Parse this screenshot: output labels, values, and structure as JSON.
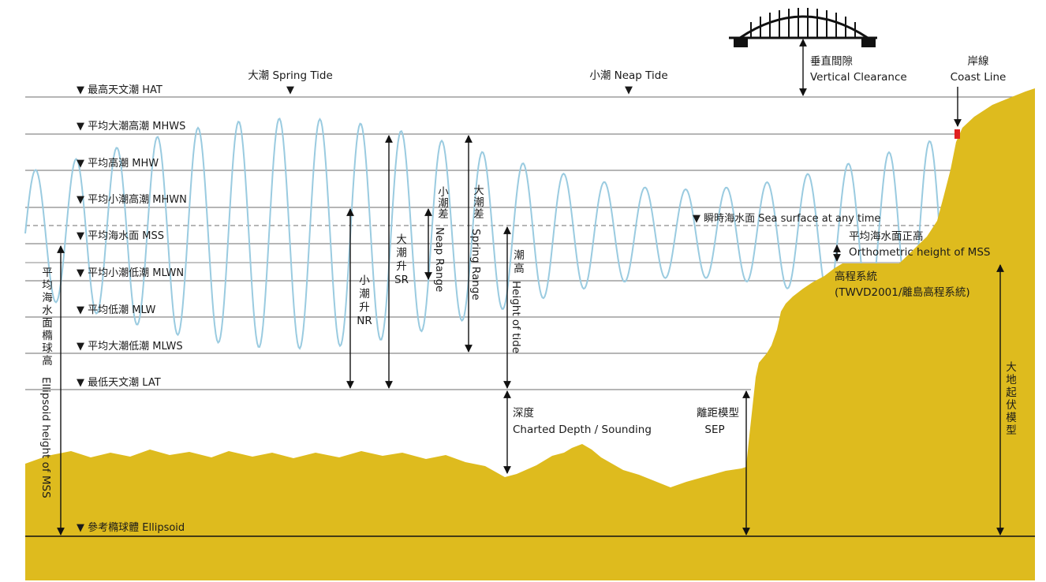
{
  "datum_levels": [
    {
      "key": "hat",
      "marker": "▼",
      "label": "最高天文潮 HAT"
    },
    {
      "key": "mhws",
      "marker": "▼",
      "label": "平均大潮高潮 MHWS"
    },
    {
      "key": "mhw",
      "marker": "▼",
      "label": "平均高潮 MHW"
    },
    {
      "key": "mhwn",
      "marker": "▼",
      "label": "平均小潮高潮 MHWN"
    },
    {
      "key": "mss",
      "marker": "▼",
      "label": "平均海水面 MSS"
    },
    {
      "key": "mlwn",
      "marker": "▼",
      "label": "平均小潮低潮 MLWN"
    },
    {
      "key": "mlw",
      "marker": "▼",
      "label": "平均低潮 MLW"
    },
    {
      "key": "mlws",
      "marker": "▼",
      "label": "平均大潮低潮 MLWS"
    },
    {
      "key": "lat",
      "marker": "▼",
      "label": "最低天文潮 LAT"
    },
    {
      "key": "ellipsoid",
      "marker": "▼",
      "label": "參考橢球體 Ellipsoid"
    }
  ],
  "phases": {
    "spring_tide": "大潮 Spring Tide",
    "neap_tide": "小潮 Neap Tide",
    "marker": "▼"
  },
  "sea_surface": {
    "marker": "▼",
    "label": "瞬時海水面 Sea surface at any time"
  },
  "clearance": {
    "line1": "垂直間隙",
    "line2": "Vertical Clearance"
  },
  "coast": {
    "line1": "岸線",
    "line2": "Coast Line"
  },
  "orthometric_mss": {
    "line1": "平均海水面正高",
    "line2": "Orthometric height of MSS"
  },
  "height_system": {
    "line1": "高程系統",
    "line2": "(TWVD2001/離島高程系統)"
  },
  "charted_depth": {
    "line1": "深度",
    "line2": "Charted Depth / Sounding"
  },
  "sep": {
    "line1": "離距模型",
    "line2": "SEP"
  },
  "geoid_model": [
    "大",
    "地",
    "起",
    "伏",
    "模",
    "型"
  ],
  "neap_rise": [
    "小",
    "潮",
    "升",
    "NR"
  ],
  "spring_rise": [
    "大",
    "潮",
    "升",
    "SR"
  ],
  "neap_range": {
    "cjk": [
      "小",
      "潮",
      "差"
    ],
    "latin": "Neap Range"
  },
  "spring_range": {
    "cjk": [
      "大",
      "潮",
      "差"
    ],
    "latin": "Spring Range"
  },
  "height_of_tide": {
    "cjk": [
      "潮",
      "高"
    ],
    "latin": "Height of tide"
  },
  "ellipsoid_height": {
    "cjk": [
      "平",
      "均",
      "海",
      "水",
      "面",
      "橢",
      "球",
      "高"
    ],
    "latin": "Ellipsoid height of MSS"
  },
  "colors": {
    "land": "#DEBB1E",
    "wave": "#9ACBE0",
    "grid_line": "#8a8a8a",
    "coast_marker": "#E02020",
    "arrow": "#111111"
  }
}
